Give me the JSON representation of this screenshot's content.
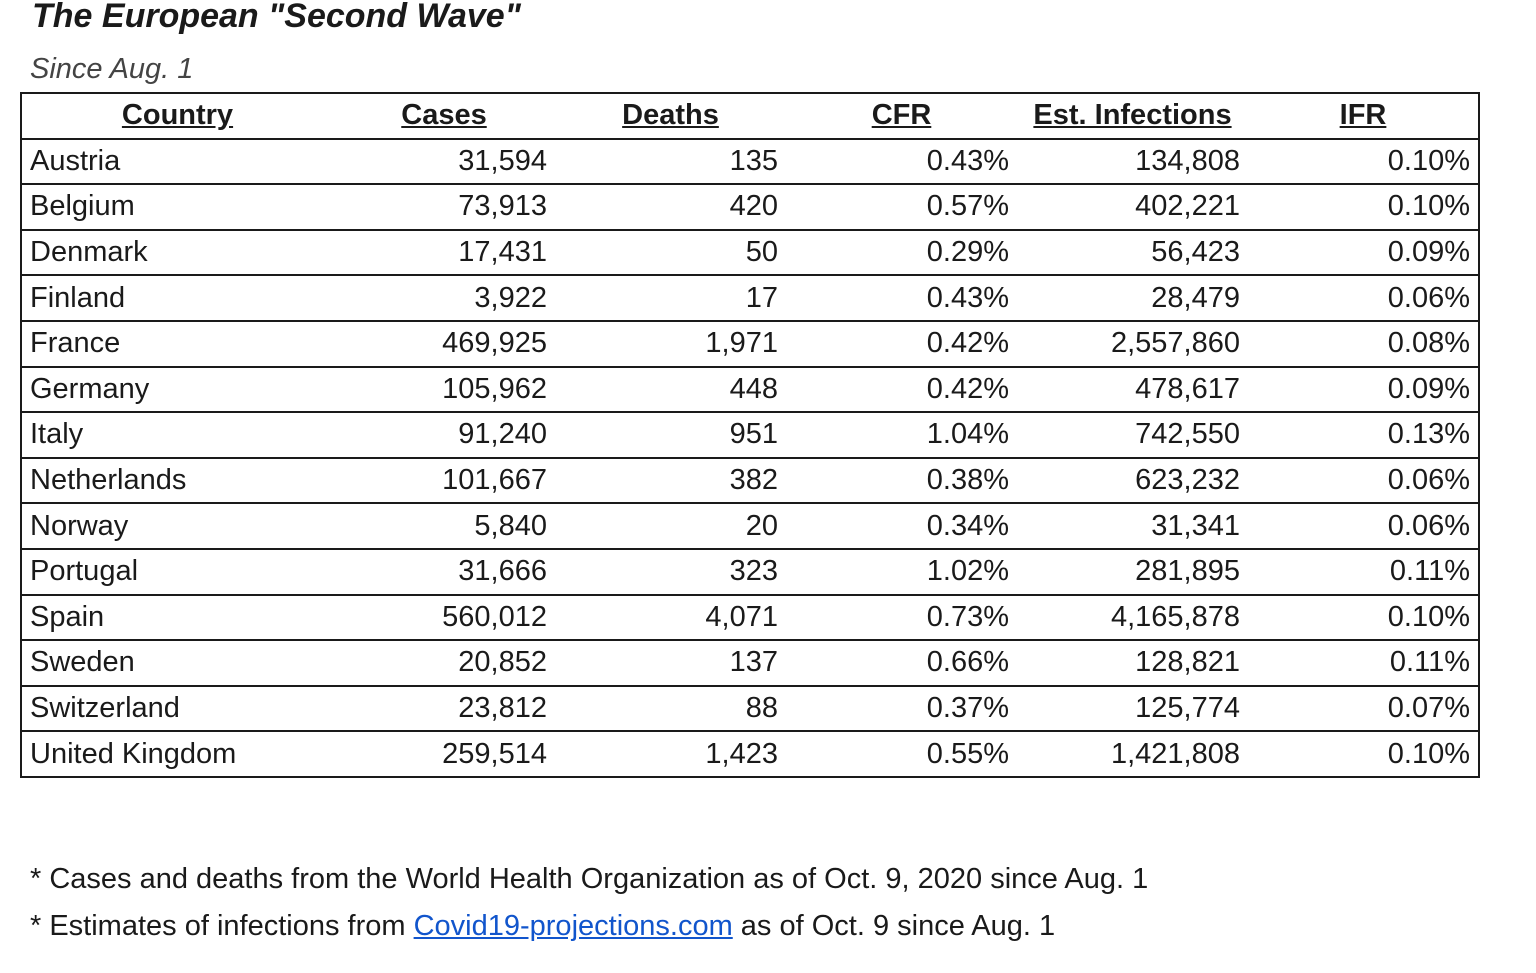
{
  "title": "The European \"Second Wave\"",
  "subtitle": "Since Aug. 1",
  "table": {
    "headers": [
      "Country",
      "Cases",
      "Deaths",
      "CFR",
      "Est. Infections",
      "IFR"
    ],
    "rows": [
      [
        "Austria",
        "31,594",
        "135",
        "0.43%",
        "134,808",
        "0.10%"
      ],
      [
        "Belgium",
        "73,913",
        "420",
        "0.57%",
        "402,221",
        "0.10%"
      ],
      [
        "Denmark",
        "17,431",
        "50",
        "0.29%",
        "56,423",
        "0.09%"
      ],
      [
        "Finland",
        "3,922",
        "17",
        "0.43%",
        "28,479",
        "0.06%"
      ],
      [
        "France",
        "469,925",
        "1,971",
        "0.42%",
        "2,557,860",
        "0.08%"
      ],
      [
        "Germany",
        "105,962",
        "448",
        "0.42%",
        "478,617",
        "0.09%"
      ],
      [
        "Italy",
        "91,240",
        "951",
        "1.04%",
        "742,550",
        "0.13%"
      ],
      [
        "Netherlands",
        "101,667",
        "382",
        "0.38%",
        "623,232",
        "0.06%"
      ],
      [
        "Norway",
        "5,840",
        "20",
        "0.34%",
        "31,341",
        "0.06%"
      ],
      [
        "Portugal",
        "31,666",
        "323",
        "1.02%",
        "281,895",
        "0.11%"
      ],
      [
        "Spain",
        "560,012",
        "4,071",
        "0.73%",
        "4,165,878",
        "0.10%"
      ],
      [
        "Sweden",
        "20,852",
        "137",
        "0.66%",
        "128,821",
        "0.11%"
      ],
      [
        "Switzerland",
        "23,812",
        "88",
        "0.37%",
        "125,774",
        "0.07%"
      ],
      [
        "United Kingdom",
        "259,514",
        "1,423",
        "0.55%",
        "1,421,808",
        "0.10%"
      ]
    ]
  },
  "notes": {
    "line1": "* Cases and deaths from the World Health Organization as of Oct. 9, 2020 since Aug. 1",
    "line2_prefix": "* Estimates of infections from ",
    "line2_link": "Covid19-projections.com",
    "line2_suffix": " as of Oct. 9 since Aug. 1"
  },
  "colors": {
    "link": "#1155cc",
    "text": "#1a1a1a"
  }
}
